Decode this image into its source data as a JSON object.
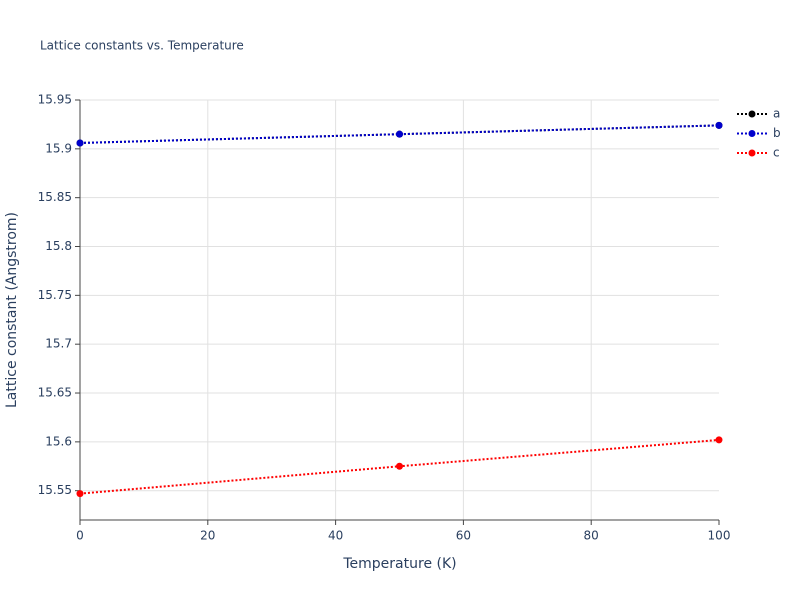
{
  "chart_data": {
    "type": "line",
    "title": "Lattice constants vs. Temperature",
    "x_label": "Temperature (K)",
    "y_label": "Lattice constant (Angstrom)",
    "x": [
      0,
      50,
      100
    ],
    "series": [
      {
        "name": "a",
        "color": "#000000",
        "values": [
          15.906,
          15.915,
          15.924
        ]
      },
      {
        "name": "b",
        "color": "#0000cc",
        "values": [
          15.906,
          15.915,
          15.924
        ]
      },
      {
        "name": "c",
        "color": "#ff0000",
        "values": [
          15.547,
          15.575,
          15.602
        ]
      }
    ],
    "xlim": [
      0,
      100
    ],
    "xticks": [
      0,
      20,
      40,
      60,
      80,
      100
    ],
    "ylim": [
      15.52,
      15.95
    ],
    "yticks": [
      15.55,
      15.6,
      15.65,
      15.7,
      15.75,
      15.8,
      15.85,
      15.9,
      15.95
    ],
    "grid": true,
    "legend": "top-right",
    "line_style": "dotted",
    "markers": true
  }
}
